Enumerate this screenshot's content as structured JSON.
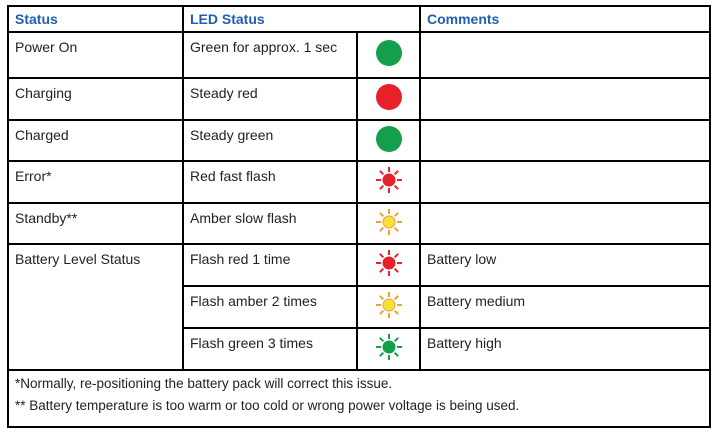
{
  "headers": {
    "status": "Status",
    "led_status": "LED Status",
    "comments": "Comments"
  },
  "rows": [
    {
      "status": "Power On",
      "led": "Green for approx. 1 sec",
      "icon": "steady-green",
      "comment": ""
    },
    {
      "status": "Charging",
      "led": "Steady red",
      "icon": "steady-red",
      "comment": ""
    },
    {
      "status": "Charged",
      "led": "Steady green",
      "icon": "steady-green",
      "comment": ""
    },
    {
      "status": "Error*",
      "led": "Red fast flash",
      "icon": "flash-red",
      "comment": ""
    },
    {
      "status": "Standby**",
      "led": "Amber slow flash",
      "icon": "flash-amber",
      "comment": ""
    },
    {
      "status": "Battery Level Status",
      "led": "Flash red 1 time",
      "icon": "flash-red",
      "comment": "Battery low"
    },
    {
      "led": "Flash amber 2 times",
      "icon": "flash-amber",
      "comment": "Battery medium"
    },
    {
      "led": "Flash green 3 times",
      "icon": "flash-green",
      "comment": "Battery high"
    }
  ],
  "footnotes": [
    "*Normally, re-positioning the battery pack will correct this issue.",
    "** Battery temperature is too warm or too cold or wrong power voltage is being used."
  ],
  "colors": {
    "header": "#1f5fb0",
    "green": "#14a04a",
    "red": "#e8202a",
    "amber": "#f5e13a"
  }
}
